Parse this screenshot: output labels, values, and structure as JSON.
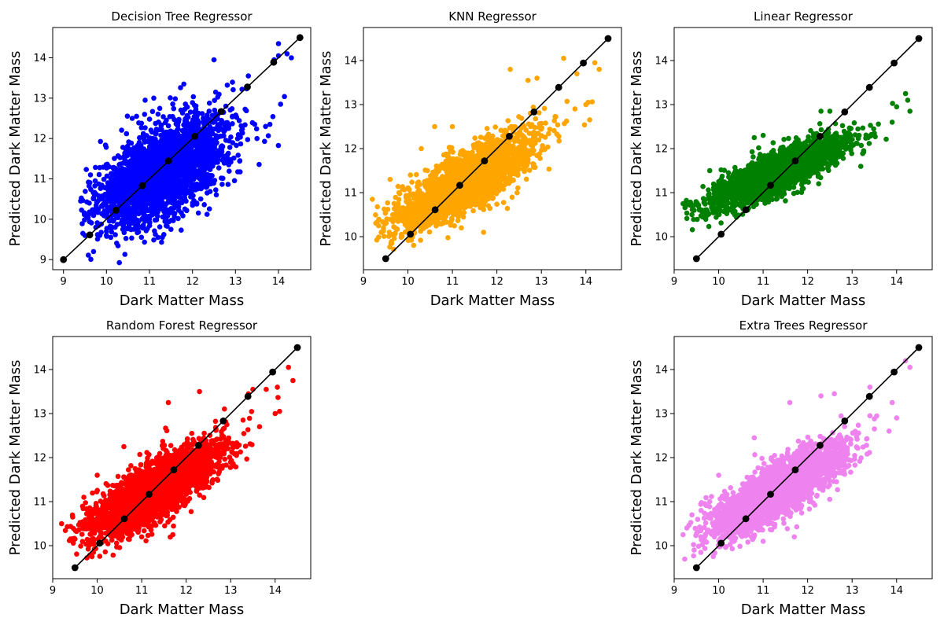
{
  "colors": {
    "Decision Tree Regressor": "#0000ff",
    "KNN Regressor": "#ffa500",
    "Linear Regressor": "#008000",
    "Random Forest Regressor": "#ff0000",
    "Extra Trees Regressor": "#ee82ee",
    "reference": "#000000"
  },
  "chart_data": [
    {
      "type": "scatter",
      "title": "Decision Tree Regressor",
      "xlabel": "Dark Matter Mass",
      "ylabel": "Predicted Dark Matter Mass",
      "xlim": [
        8.75,
        14.75
      ],
      "ylim": [
        8.75,
        14.75
      ],
      "xticks": [
        9,
        10,
        11,
        12,
        13,
        14
      ],
      "yticks": [
        9,
        10,
        11,
        12,
        13,
        14
      ],
      "grid": false,
      "series": [
        {
          "kind": "scatter",
          "color": "#0000ff",
          "spread": 0.55,
          "slope": 0.52,
          "intercept": 5.3,
          "xrange": [
            9.4,
            14.4
          ],
          "points": [
            [
              9.4,
              10.45
            ],
            [
              9.45,
              9.65
            ],
            [
              9.5,
              9.6
            ],
            [
              9.55,
              10.05
            ],
            [
              9.6,
              10.4
            ],
            [
              9.7,
              9.2
            ],
            [
              9.8,
              10.45
            ],
            [
              10.0,
              9.7
            ],
            [
              10.1,
              9.55
            ],
            [
              10.2,
              9.8
            ],
            [
              10.6,
              12.5
            ],
            [
              10.7,
              12.55
            ],
            [
              10.9,
              12.95
            ],
            [
              11.1,
              13.0
            ],
            [
              11.2,
              9.55
            ],
            [
              11.3,
              9.55
            ],
            [
              11.5,
              9.75
            ],
            [
              11.8,
              13.35
            ],
            [
              12.1,
              10.4
            ],
            [
              12.5,
              13.95
            ],
            [
              13.3,
              13.55
            ],
            [
              13.5,
              12.0
            ],
            [
              13.8,
              12.35
            ],
            [
              13.9,
              13.95
            ],
            [
              14.0,
              14.35
            ],
            [
              14.05,
              12.85
            ],
            [
              14.2,
              14.1
            ],
            [
              14.3,
              14.0
            ],
            [
              14.0,
              14.05
            ],
            [
              13.7,
              12.3
            ]
          ]
        }
      ],
      "reference": {
        "x": [
          9.0,
          9.611,
          10.222,
          10.833,
          11.444,
          12.056,
          12.667,
          13.278,
          13.889,
          14.5
        ],
        "y": [
          9.0,
          9.611,
          10.222,
          10.833,
          11.444,
          12.056,
          12.667,
          13.278,
          13.889,
          14.5
        ]
      }
    },
    {
      "type": "scatter",
      "title": "KNN Regressor",
      "xlabel": "Dark Matter Mass",
      "ylabel": "Predicted Dark Matter Mass",
      "xlim": [
        9.0,
        14.8
      ],
      "ylim": [
        9.25,
        14.75
      ],
      "xticks": [
        9,
        10,
        11,
        12,
        13,
        14
      ],
      "yticks": [
        10,
        11,
        12,
        13,
        14
      ],
      "grid": false,
      "series": [
        {
          "kind": "scatter",
          "color": "#ffa500",
          "spread": 0.32,
          "slope": 0.57,
          "intercept": 4.8,
          "xrange": [
            9.2,
            14.4
          ],
          "points": [
            [
              9.2,
              10.85
            ],
            [
              9.4,
              10.1
            ],
            [
              9.45,
              10.2
            ],
            [
              9.6,
              11.3
            ],
            [
              9.7,
              10.05
            ],
            [
              9.8,
              11.0
            ],
            [
              10.3,
              12.0
            ],
            [
              10.6,
              12.5
            ],
            [
              11.0,
              12.5
            ],
            [
              11.7,
              10.1
            ],
            [
              12.3,
              13.8
            ],
            [
              12.7,
              13.55
            ],
            [
              13.5,
              14.05
            ],
            [
              13.8,
              13.7
            ],
            [
              14.0,
              13.0
            ],
            [
              14.05,
              13.05
            ],
            [
              14.2,
              13.95
            ],
            [
              14.3,
              13.8
            ],
            [
              12.9,
              13.6
            ],
            [
              11.2,
              10.2
            ]
          ]
        }
      ],
      "reference": {
        "x": [
          9.5,
          10.056,
          10.611,
          11.167,
          11.722,
          12.278,
          12.833,
          13.389,
          13.944,
          14.5
        ],
        "y": [
          9.5,
          10.056,
          10.611,
          11.167,
          11.722,
          12.278,
          12.833,
          13.389,
          13.944,
          14.5
        ]
      }
    },
    {
      "type": "scatter",
      "title": "Linear Regressor",
      "xlabel": "Dark Matter Mass",
      "ylabel": "Predicted Dark Matter Mass",
      "xlim": [
        9.0,
        14.8
      ],
      "ylim": [
        9.25,
        14.75
      ],
      "xticks": [
        9,
        10,
        11,
        12,
        13,
        14
      ],
      "yticks": [
        10,
        11,
        12,
        13,
        14
      ],
      "grid": false,
      "series": [
        {
          "kind": "scatter",
          "color": "#008000",
          "spread": 0.22,
          "slope": 0.45,
          "intercept": 6.35,
          "xrange": [
            9.2,
            14.4
          ],
          "points": [
            [
              9.2,
              10.75
            ],
            [
              9.4,
              10.5
            ],
            [
              9.45,
              10.6
            ],
            [
              9.8,
              11.5
            ],
            [
              10.0,
              11.25
            ],
            [
              10.8,
              12.25
            ],
            [
              11.0,
              12.3
            ],
            [
              12.3,
              12.85
            ],
            [
              12.5,
              12.85
            ],
            [
              13.5,
              12.35
            ],
            [
              14.0,
              12.95
            ],
            [
              14.2,
              13.25
            ],
            [
              14.3,
              12.85
            ],
            [
              14.25,
              13.1
            ],
            [
              13.9,
              12.6
            ]
          ]
        }
      ],
      "reference": {
        "x": [
          9.5,
          10.056,
          10.611,
          11.167,
          11.722,
          12.278,
          12.833,
          13.389,
          13.944,
          14.5
        ],
        "y": [
          9.5,
          10.056,
          10.611,
          11.167,
          11.722,
          12.278,
          12.833,
          13.389,
          13.944,
          14.5
        ]
      }
    },
    {
      "type": "scatter",
      "title": "Random Forest Regressor",
      "xlabel": "Dark Matter Mass",
      "ylabel": "Predicted Dark Matter Mass",
      "xlim": [
        9.0,
        14.8
      ],
      "ylim": [
        9.25,
        14.75
      ],
      "xticks": [
        9,
        10,
        11,
        12,
        13,
        14
      ],
      "yticks": [
        10,
        11,
        12,
        13,
        14
      ],
      "grid": false,
      "series": [
        {
          "kind": "scatter",
          "color": "#ff0000",
          "spread": 0.33,
          "slope": 0.58,
          "intercept": 4.7,
          "xrange": [
            9.2,
            14.4
          ],
          "points": [
            [
              9.2,
              10.5
            ],
            [
              9.4,
              10.15
            ],
            [
              9.5,
              10.15
            ],
            [
              9.45,
              10.65
            ],
            [
              9.7,
              11.1
            ],
            [
              9.8,
              10.55
            ],
            [
              10.0,
              11.6
            ],
            [
              10.6,
              12.25
            ],
            [
              11.0,
              10.2
            ],
            [
              11.7,
              10.25
            ],
            [
              11.6,
              13.25
            ],
            [
              12.3,
              13.5
            ],
            [
              13.4,
              13.45
            ],
            [
              13.5,
              13.55
            ],
            [
              14.0,
              13.0
            ],
            [
              14.1,
              13.05
            ],
            [
              14.3,
              14.05
            ],
            [
              14.4,
              13.75
            ],
            [
              14.05,
              13.6
            ],
            [
              13.8,
              13.55
            ]
          ]
        }
      ],
      "reference": {
        "x": [
          9.5,
          10.056,
          10.611,
          11.167,
          11.722,
          12.278,
          12.833,
          13.389,
          13.944,
          14.5
        ],
        "y": [
          9.5,
          10.056,
          10.611,
          11.167,
          11.722,
          12.278,
          12.833,
          13.389,
          13.944,
          14.5
        ]
      }
    },
    {
      "type": "scatter",
      "title": "Extra Trees Regressor",
      "xlabel": "Dark Matter Mass",
      "ylabel": "Predicted Dark Matter Mass",
      "xlim": [
        9.0,
        14.8
      ],
      "ylim": [
        9.25,
        14.75
      ],
      "xticks": [
        9,
        10,
        11,
        12,
        13,
        14
      ],
      "yticks": [
        10,
        11,
        12,
        13,
        14
      ],
      "grid": false,
      "series": [
        {
          "kind": "scatter",
          "color": "#ee82ee",
          "spread": 0.3,
          "slope": 0.58,
          "intercept": 4.7,
          "xrange": [
            9.2,
            14.4
          ],
          "points": [
            [
              9.2,
              10.25
            ],
            [
              9.4,
              10.7
            ],
            [
              9.45,
              9.9
            ],
            [
              9.6,
              10.2
            ],
            [
              9.8,
              11.0
            ],
            [
              10.0,
              11.6
            ],
            [
              10.8,
              12.45
            ],
            [
              11.0,
              10.1
            ],
            [
              11.7,
              10.2
            ],
            [
              11.6,
              13.25
            ],
            [
              12.3,
              13.4
            ],
            [
              12.6,
              13.45
            ],
            [
              13.4,
              12.95
            ],
            [
              13.4,
              13.6
            ],
            [
              13.5,
              12.65
            ],
            [
              14.0,
              12.9
            ],
            [
              14.2,
              14.2
            ],
            [
              14.3,
              14.05
            ],
            [
              13.9,
              13.25
            ]
          ]
        }
      ],
      "reference": {
        "x": [
          9.5,
          10.056,
          10.611,
          11.167,
          11.722,
          12.278,
          12.833,
          13.389,
          13.944,
          14.5
        ],
        "y": [
          9.5,
          10.056,
          10.611,
          11.167,
          11.722,
          12.278,
          12.833,
          13.389,
          13.944,
          14.5
        ]
      }
    }
  ]
}
